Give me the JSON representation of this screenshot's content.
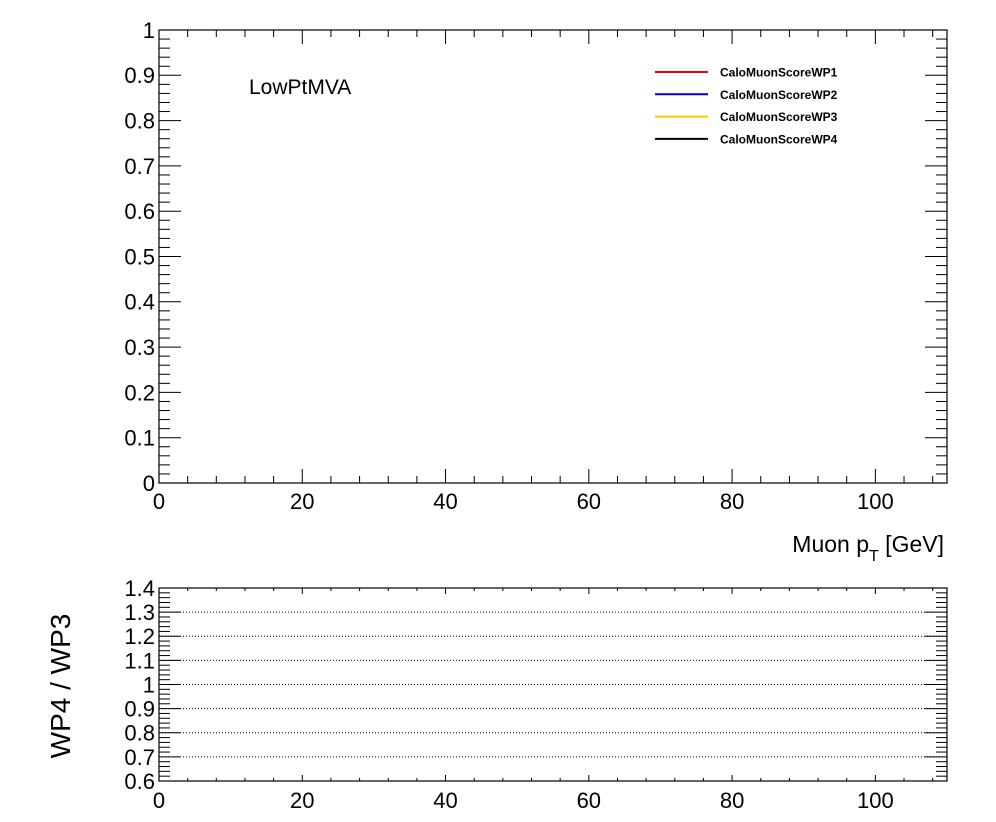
{
  "chart_data": [
    {
      "type": "line",
      "panel": "main",
      "annotation": "LowPtMVA",
      "xlabel_main": "Muon p",
      "xlabel_sub": "T",
      "xlabel_unit": " [GeV]",
      "ylabel": "",
      "xlim": [
        0,
        110
      ],
      "ylim": [
        0,
        1
      ],
      "x_ticks": [
        "0",
        "20",
        "40",
        "60",
        "80",
        "100"
      ],
      "y_ticks": [
        "0",
        "0.1",
        "0.2",
        "0.3",
        "0.4",
        "0.5",
        "0.6",
        "0.7",
        "0.8",
        "0.9",
        "1"
      ],
      "legend_position": "top-right",
      "grid": false,
      "series": [
        {
          "name": "CaloMuonScoreWP1",
          "color": "#ee0000",
          "x": [],
          "y": []
        },
        {
          "name": "CaloMuonScoreWP2",
          "color": "#0000cc",
          "x": [],
          "y": []
        },
        {
          "name": "CaloMuonScoreWP3",
          "color": "#ffc800",
          "x": [],
          "y": []
        },
        {
          "name": "CaloMuonScoreWP4",
          "color": "#000000",
          "x": [],
          "y": []
        }
      ]
    },
    {
      "type": "line",
      "panel": "ratio",
      "xlabel": "",
      "ylabel": "WP4 / WP3",
      "xlim": [
        0,
        110
      ],
      "ylim": [
        0.6,
        1.4
      ],
      "x_ticks": [
        "0",
        "20",
        "40",
        "60",
        "80",
        "100"
      ],
      "y_ticks": [
        "0.6",
        "0.7",
        "0.8",
        "0.9",
        "1",
        "1.1",
        "1.2",
        "1.3",
        "1.4"
      ],
      "grid": true,
      "series": []
    }
  ]
}
